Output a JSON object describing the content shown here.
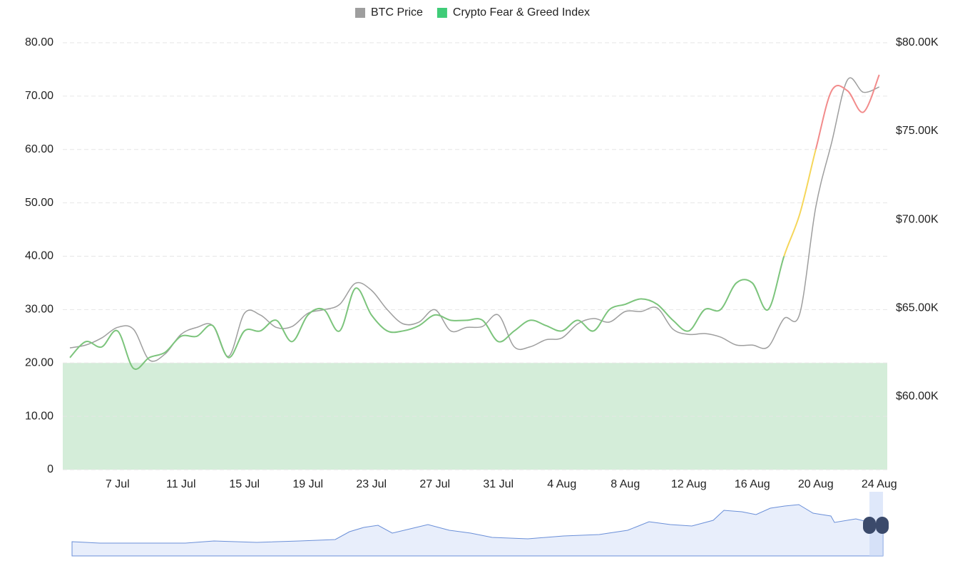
{
  "chart_data": {
    "type": "line",
    "categories": [
      null,
      null,
      null,
      "7 Jul",
      null,
      null,
      null,
      "11 Jul",
      null,
      null,
      null,
      "15 Jul",
      null,
      null,
      null,
      "19 Jul",
      null,
      null,
      null,
      "23 Jul",
      null,
      null,
      null,
      "27 Jul",
      null,
      null,
      null,
      "31 Jul",
      null,
      null,
      null,
      "4 Aug",
      null,
      null,
      null,
      "8 Aug",
      null,
      null,
      null,
      "12 Aug",
      null,
      null,
      null,
      "16 Aug",
      null,
      null,
      null,
      "20 Aug",
      null,
      null,
      null,
      "24 Aug"
    ],
    "series": [
      {
        "name": "BTC Price",
        "color": "#9e9e9e",
        "axis": "y2",
        "values": [
          62740,
          62900,
          63300,
          63900,
          63800,
          62060,
          62400,
          63500,
          63900,
          64000,
          62260,
          64700,
          64600,
          63900,
          63950,
          64700,
          64900,
          65200,
          66400,
          66000,
          64900,
          64100,
          64200,
          64900,
          63700,
          63900,
          63950,
          64600,
          62800,
          62800,
          63200,
          63300,
          64100,
          64400,
          64200,
          64800,
          64800,
          65000,
          63800,
          63500,
          63550,
          63350,
          62900,
          62900,
          62800,
          64400,
          64700,
          70700,
          74350,
          77900,
          77200,
          77500
        ]
      },
      {
        "name": "Crypto Fear & Greed Index",
        "color": "#3fcc78",
        "values": [
          21,
          24,
          23,
          26,
          19,
          21,
          22,
          25,
          25,
          27,
          21,
          26,
          26,
          28,
          24,
          29,
          30,
          26,
          34,
          29,
          26,
          26,
          27,
          29,
          28,
          28,
          28,
          24,
          26,
          28,
          27,
          26,
          28,
          26,
          30,
          31,
          32,
          31,
          28,
          26,
          30,
          30,
          35,
          35,
          30,
          40,
          48,
          60,
          71,
          71,
          67,
          74
        ],
        "zones": [
          {
            "value": 40,
            "color": "#7cc47c"
          },
          {
            "value": 60,
            "color": "#f5d65a"
          },
          {
            "color": "#f28b8b"
          }
        ]
      }
    ],
    "ylim": [
      0,
      80
    ],
    "yticks": [
      0,
      {
        "value": 10,
        "label": "10.00"
      },
      {
        "value": 20,
        "label": "20.00"
      },
      {
        "value": 30,
        "label": "30.00"
      },
      {
        "value": 40,
        "label": "40.00"
      },
      {
        "value": 50,
        "label": "50.00"
      },
      {
        "value": 60,
        "label": "60.00"
      },
      {
        "value": 70,
        "label": "70.00"
      },
      {
        "value": 80,
        "label": "80.00"
      }
    ],
    "y2lim": [
      55850,
      80000
    ],
    "y2ticks": [
      {
        "value": 60000,
        "label": "$60.00K"
      },
      {
        "value": 65000,
        "label": "$65.00K"
      },
      {
        "value": 70000,
        "label": "$70.00K"
      },
      {
        "value": 75000,
        "label": "$75.00K"
      },
      {
        "value": 80000,
        "label": "$80.00K"
      }
    ],
    "plot_band": {
      "from": 0,
      "to": 20,
      "color": "#d4edd9"
    },
    "grid": true,
    "legend": "top"
  }
}
